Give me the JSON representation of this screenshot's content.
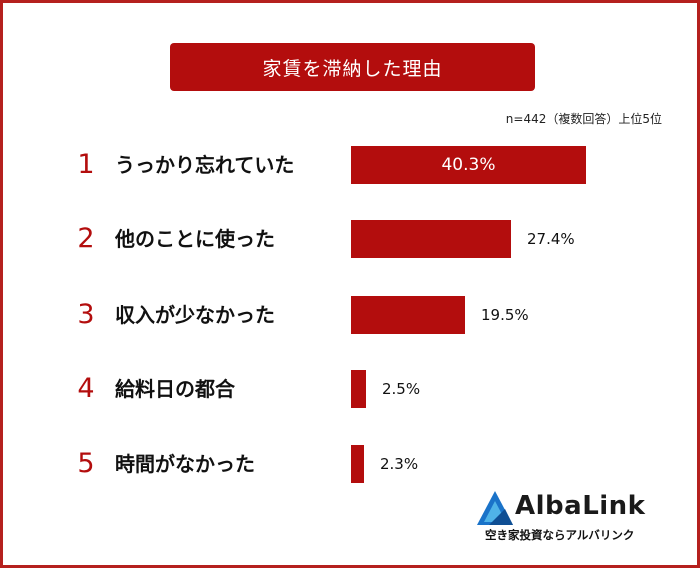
{
  "title": "家賃を滞納した理由",
  "note": "n=442（複数回答）上位5位",
  "chart_data": {
    "type": "bar",
    "orientation": "horizontal",
    "title": "家賃を滞納した理由",
    "categories": [
      "うっかり忘れていた",
      "他のことに使った",
      "収入が少なかった",
      "給料日の都合",
      "時間がなかった"
    ],
    "ranks": [
      "1",
      "2",
      "3",
      "4",
      "5"
    ],
    "values": [
      40.3,
      27.4,
      19.5,
      2.5,
      2.3
    ],
    "value_labels": [
      "40.3%",
      "27.4%",
      "19.5%",
      "2.5%",
      "2.3%"
    ],
    "unit": "%",
    "bar_color": "#b30d0d"
  },
  "logo": {
    "name": "AlbaLink",
    "tagline": "空き家投資ならアルバリンク",
    "colors": [
      "#1a73c9",
      "#4fb3e8"
    ]
  }
}
